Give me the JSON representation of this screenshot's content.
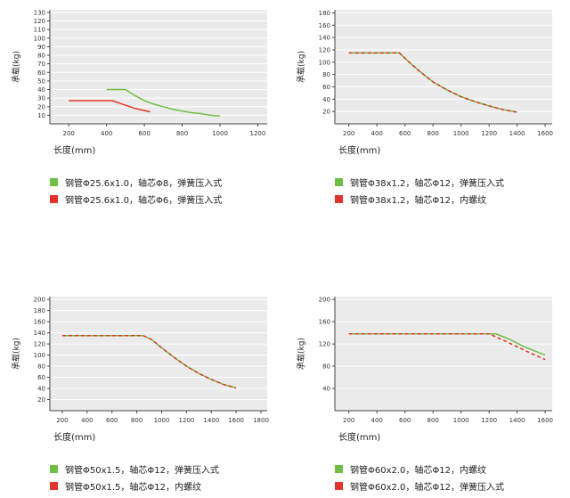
{
  "chart_data": [
    {
      "type": "line",
      "title": "",
      "ylabel": "承载(kg)",
      "xlabel": "长度(mm)",
      "xlim": [
        100,
        1250
      ],
      "ylim": [
        0,
        133
      ],
      "xticks": [
        200,
        400,
        600,
        800,
        1000,
        1200
      ],
      "yticks": [
        10,
        20,
        30,
        40,
        50,
        60,
        70,
        80,
        90,
        100,
        110,
        120,
        130
      ],
      "grid": "horizontal",
      "legend_position": "below",
      "series": [
        {
          "name": "钢管Φ25.6x1.0，轴芯Φ8，弹簧压入式",
          "color": "#6fbf44",
          "dashed": false,
          "points": [
            [
              400,
              40
            ],
            [
              500,
              40
            ],
            [
              550,
              33
            ],
            [
              600,
              27
            ],
            [
              650,
              23
            ],
            [
              700,
              20
            ],
            [
              750,
              17
            ],
            [
              800,
              15
            ],
            [
              850,
              13
            ],
            [
              900,
              12
            ],
            [
              950,
              10
            ],
            [
              1000,
              9
            ]
          ]
        },
        {
          "name": "钢管Φ25.6x1.0，轴芯Φ6，弹簧压入式",
          "color": "#e2342a",
          "dashed": false,
          "points": [
            [
              200,
              27
            ],
            [
              430,
              27
            ],
            [
              470,
              24
            ],
            [
              510,
              21
            ],
            [
              550,
              18
            ],
            [
              590,
              16
            ],
            [
              630,
              14
            ]
          ]
        }
      ]
    },
    {
      "type": "line",
      "title": "",
      "ylabel": "承载(kg)",
      "xlabel": "长度(mm)",
      "xlim": [
        100,
        1650
      ],
      "ylim": [
        0,
        185
      ],
      "xticks": [
        200,
        400,
        600,
        800,
        1000,
        1200,
        1400,
        1600
      ],
      "yticks": [
        20,
        40,
        60,
        80,
        100,
        120,
        140,
        160,
        180
      ],
      "grid": "horizontal",
      "legend_position": "below",
      "series": [
        {
          "name": "钢管Φ38x1.2，轴芯Φ12，弹簧压入式",
          "color": "#6fbf44",
          "dashed": false,
          "points": [
            [
              200,
              115
            ],
            [
              560,
              115
            ],
            [
              620,
              102
            ],
            [
              700,
              86
            ],
            [
              800,
              68
            ],
            [
              900,
              55
            ],
            [
              1000,
              44
            ],
            [
              1100,
              36
            ],
            [
              1200,
              29
            ],
            [
              1300,
              23
            ],
            [
              1400,
              19
            ]
          ]
        },
        {
          "name": "钢管Φ38x1.2，轴芯Φ12，内螺纹",
          "color": "#e2342a",
          "dashed": true,
          "points": [
            [
              200,
              115
            ],
            [
              560,
              115
            ],
            [
              620,
              102
            ],
            [
              700,
              86
            ],
            [
              800,
              68
            ],
            [
              900,
              55
            ],
            [
              1000,
              44
            ],
            [
              1100,
              36
            ],
            [
              1200,
              29
            ],
            [
              1300,
              23
            ],
            [
              1400,
              19
            ]
          ]
        }
      ]
    },
    {
      "type": "line",
      "title": "",
      "ylabel": "承载(kg)",
      "xlabel": "长度(mm)",
      "xlim": [
        100,
        1850
      ],
      "ylim": [
        0,
        205
      ],
      "xticks": [
        200,
        400,
        600,
        800,
        1000,
        1200,
        1400,
        1600,
        1800
      ],
      "yticks": [
        20,
        40,
        60,
        80,
        100,
        120,
        140,
        160,
        180,
        200
      ],
      "grid": "horizontal",
      "legend_position": "below",
      "series": [
        {
          "name": "钢管Φ50x1.5，轴芯Φ12，弹簧压入式",
          "color": "#6fbf44",
          "dashed": false,
          "points": [
            [
              200,
              135
            ],
            [
              850,
              135
            ],
            [
              920,
              128
            ],
            [
              1000,
              113
            ],
            [
              1100,
              96
            ],
            [
              1200,
              80
            ],
            [
              1300,
              67
            ],
            [
              1400,
              56
            ],
            [
              1500,
              47
            ],
            [
              1600,
              41
            ]
          ]
        },
        {
          "name": "钢管Φ50x1.5，轴芯Φ12，内螺纹",
          "color": "#e2342a",
          "dashed": true,
          "points": [
            [
              200,
              135
            ],
            [
              850,
              135
            ],
            [
              920,
              128
            ],
            [
              1000,
              113
            ],
            [
              1100,
              96
            ],
            [
              1200,
              80
            ],
            [
              1300,
              67
            ],
            [
              1400,
              56
            ],
            [
              1500,
              47
            ],
            [
              1600,
              41
            ]
          ]
        }
      ]
    },
    {
      "type": "line",
      "title": "",
      "ylabel": "承载(kg)",
      "xlabel": "长度(mm)",
      "xlim": [
        100,
        1650
      ],
      "ylim": [
        0,
        205
      ],
      "xticks": [
        200,
        400,
        600,
        800,
        1000,
        1200,
        1400,
        1600
      ],
      "yticks": [
        40,
        80,
        120,
        160,
        200
      ],
      "grid": "horizontal",
      "legend_position": "below",
      "series": [
        {
          "name": "钢管Φ60x2.0，轴芯Φ12，内螺纹",
          "color": "#6fbf44",
          "dashed": false,
          "points": [
            [
              200,
              138
            ],
            [
              1250,
              138
            ],
            [
              1350,
              128
            ],
            [
              1450,
              115
            ],
            [
              1550,
              105
            ],
            [
              1600,
              100
            ]
          ]
        },
        {
          "name": "钢管Φ60x2.0，轴芯Φ12，弹簧压入式",
          "color": "#e2342a",
          "dashed": true,
          "points": [
            [
              200,
              138
            ],
            [
              1200,
              138
            ],
            [
              1300,
              127
            ],
            [
              1400,
              115
            ],
            [
              1500,
              103
            ],
            [
              1600,
              92
            ]
          ]
        }
      ]
    }
  ],
  "style": {
    "plot_bg": "#ebebeb",
    "grid_color": "#ffffff",
    "axis_color": "#444444",
    "tick_text_color": "#333333"
  }
}
